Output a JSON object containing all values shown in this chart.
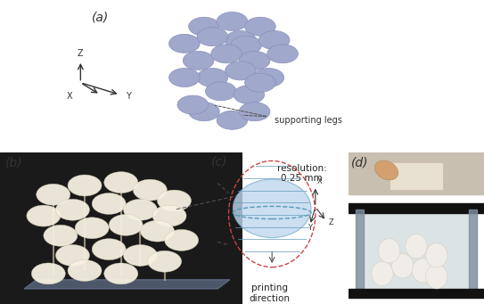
{
  "bg_color": "#ffffff",
  "panel_labels": [
    "(a)",
    "(b)",
    "(c)",
    "(d)"
  ],
  "panel_label_fontsize": 10,
  "panel_label_style": "italic",
  "sphere_color_a": "#a0a8cc",
  "sphere_color_b": "#f5f0e0",
  "sphere_outline_a": "#8890bb",
  "sphere_outline_b": "#d0c8b0",
  "axis_color": "#333333",
  "stair_sphere_equator": "#5599bb",
  "dashed_line_color": "#555555",
  "resolution_text": "resolution:\n0.25 mm",
  "printing_dir_text": "printing\ndirection",
  "supporting_legs_text": "supporting legs"
}
